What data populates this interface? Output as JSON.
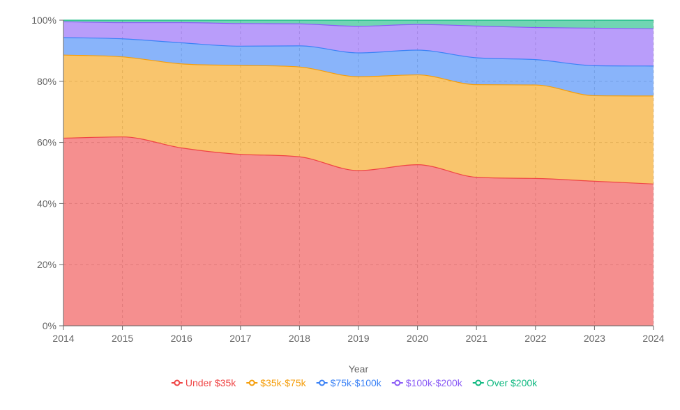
{
  "chart_data": {
    "type": "area",
    "stacked": true,
    "percent": true,
    "title": "",
    "xlabel": "Year",
    "ylabel": "",
    "x": [
      "2014",
      "2015",
      "2016",
      "2017",
      "2018",
      "2019",
      "2020",
      "2021",
      "2022",
      "2023",
      "2024"
    ],
    "ylim": [
      0,
      100
    ],
    "yticks": [
      0,
      20,
      40,
      60,
      80,
      100
    ],
    "ytick_suffix": "%",
    "ytick_labels": [
      "0%",
      "20%",
      "40%",
      "60%",
      "80%",
      "100%"
    ],
    "grid": true,
    "legend_position": "bottom-center",
    "series": [
      {
        "name": "Under $35k",
        "color": "#ef4444",
        "values": [
          61.4,
          61.8,
          58.2,
          56.1,
          55.3,
          50.8,
          52.7,
          48.6,
          48.2,
          47.3,
          46.4
        ]
      },
      {
        "name": "$35k-$75k",
        "color": "#f59e0b",
        "values": [
          27.2,
          26.2,
          27.5,
          29.1,
          29.4,
          30.7,
          29.4,
          30.3,
          30.6,
          28.0,
          28.8
        ]
      },
      {
        "name": "$75k-$100k",
        "color": "#3b82f6",
        "values": [
          5.7,
          5.9,
          6.9,
          6.3,
          6.9,
          7.8,
          8.1,
          8.8,
          8.3,
          9.8,
          9.8
        ]
      },
      {
        "name": "$100k-$200k",
        "color": "#8b5cf6",
        "values": [
          5.2,
          5.3,
          6.6,
          7.4,
          7.2,
          8.7,
          8.4,
          10.4,
          10.5,
          12.3,
          12.2
        ]
      },
      {
        "name": "Over $200k",
        "color": "#10b981",
        "values": [
          0.5,
          0.8,
          0.8,
          1.1,
          1.2,
          2.0,
          1.4,
          1.9,
          2.4,
          2.6,
          2.8
        ]
      }
    ]
  }
}
